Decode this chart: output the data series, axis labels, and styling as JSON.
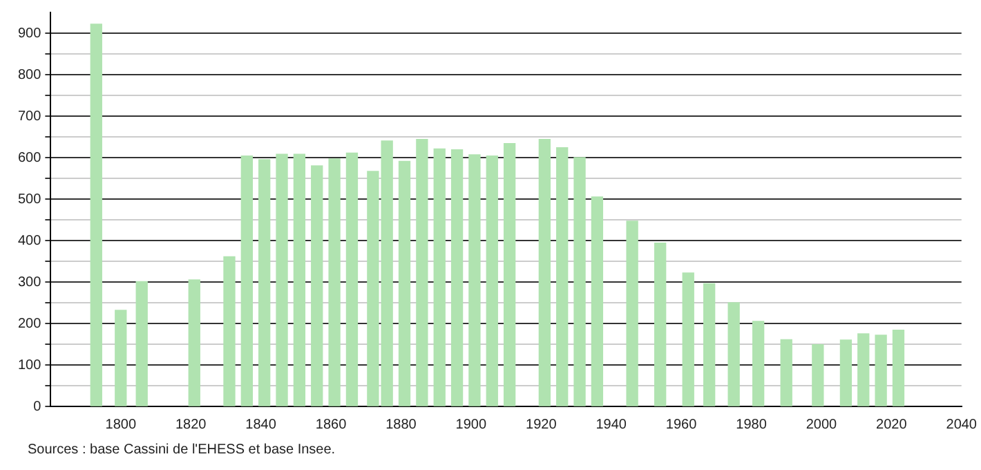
{
  "chart_data": {
    "type": "bar",
    "x": [
      1793,
      1800,
      1806,
      1821,
      1831,
      1836,
      1841,
      1846,
      1851,
      1856,
      1861,
      1866,
      1872,
      1876,
      1881,
      1886,
      1891,
      1896,
      1901,
      1906,
      1911,
      1921,
      1926,
      1931,
      1936,
      1946,
      1954,
      1962,
      1968,
      1975,
      1982,
      1990,
      1999,
      2007,
      2012,
      2017,
      2022
    ],
    "values": [
      922,
      232,
      301,
      305,
      361,
      604,
      595,
      608,
      608,
      580,
      597,
      611,
      567,
      640,
      591,
      644,
      621,
      619,
      607,
      604,
      634,
      644,
      624,
      600,
      505,
      447,
      394,
      322,
      296,
      250,
      205,
      161,
      149,
      160,
      175,
      172,
      184
    ],
    "color": "#b0e3b0",
    "xlim": [
      1780,
      2040
    ],
    "xticks": [
      1800,
      1820,
      1840,
      1860,
      1880,
      1900,
      1920,
      1940,
      1960,
      1980,
      2000,
      2020,
      2040
    ],
    "ylim": [
      0,
      950
    ],
    "yticks": [
      0,
      {
        "value": 50,
        "label": null
      },
      100,
      {
        "value": 150,
        "label": null
      },
      200,
      {
        "value": 250,
        "label": null
      },
      300,
      {
        "value": 350,
        "label": null
      },
      400,
      {
        "value": 450,
        "label": null
      },
      500,
      {
        "value": 550,
        "label": null
      },
      600,
      {
        "value": 650,
        "label": null
      },
      700,
      {
        "value": 750,
        "label": null
      },
      800,
      {
        "value": 850,
        "label": null
      },
      900
    ],
    "grid": "y",
    "legend": false,
    "annotations": [
      "Sources : base Cassini de l'EHESS et base Insee."
    ]
  }
}
